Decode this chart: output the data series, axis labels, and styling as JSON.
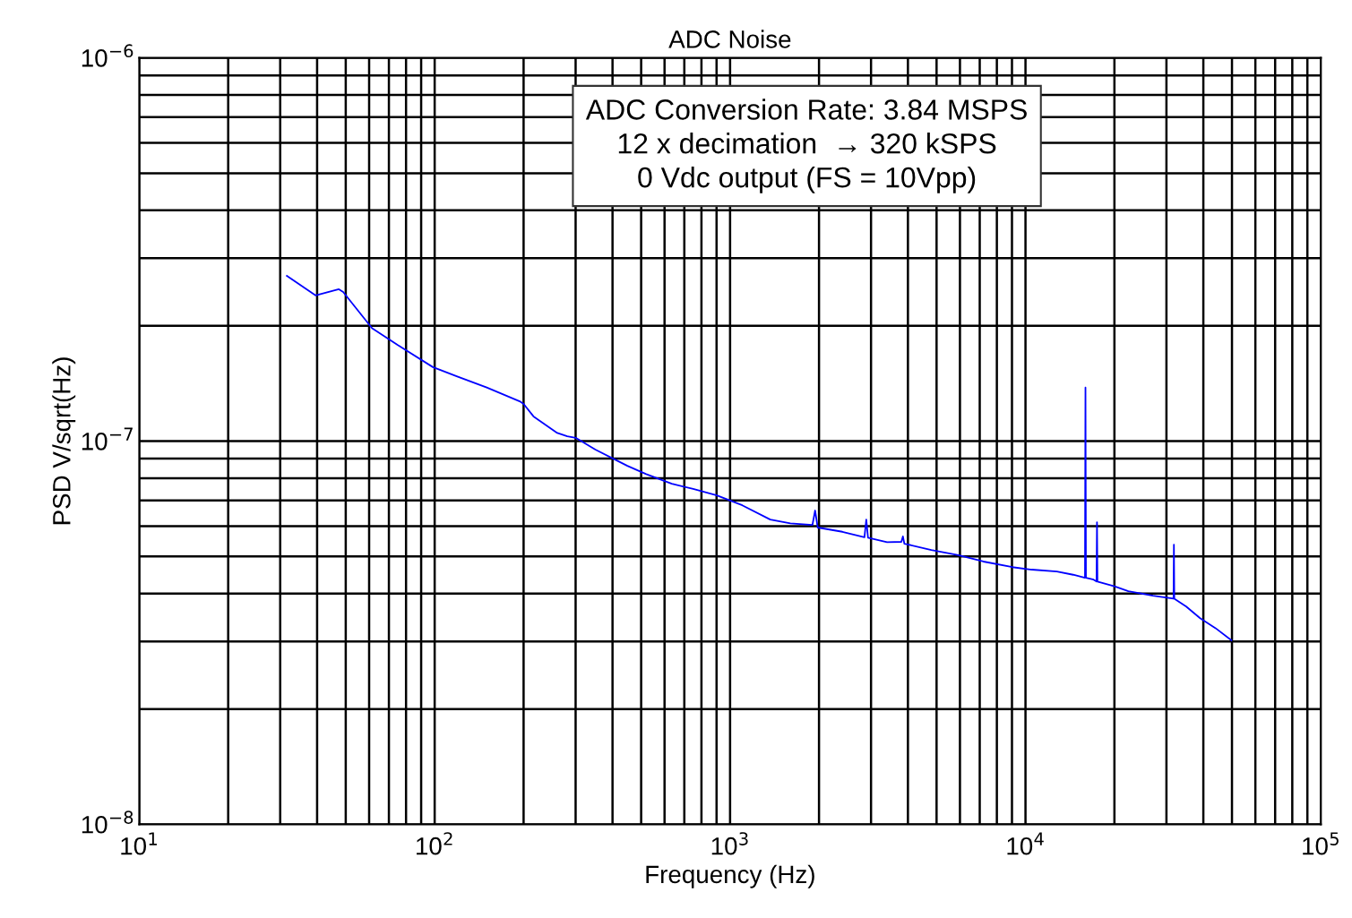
{
  "chart_data": {
    "type": "line",
    "title": "ADC Noise",
    "xlabel": "Frequency (Hz)",
    "ylabel": "PSD V/sqrt(Hz)",
    "log": "xy",
    "grid": true,
    "marker": "none",
    "line_style": "solid",
    "xlim": [
      10,
      100000
    ],
    "ylim": [
      1e-08,
      1e-06
    ],
    "xticks": [
      {
        "value": 10,
        "label": "10$^{1}$"
      },
      {
        "value": 100,
        "label": "10$^{2}$"
      },
      {
        "value": 1000,
        "label": "10$^{3}$"
      },
      {
        "value": 10000,
        "label": "10$^{4}$"
      },
      {
        "value": 100000,
        "label": "10$^{5}$"
      }
    ],
    "yticks": [
      {
        "value": 1e-08,
        "label": "10$^{−8}$"
      },
      {
        "value": 1e-07,
        "label": "10$^{−7}$"
      },
      {
        "value": 1e-06,
        "label": "10$^{−6}$"
      }
    ],
    "annotations": [
      "ADC Conversion Rate: 3.84 MSPS\n12 x decimation  → 320 kSPS\n0 Vdc output (FS = 10Vpp)"
    ],
    "series": [
      {
        "color": "#0000ff",
        "x": [
          31.6,
          39.5,
          47.4,
          49,
          61.4,
          75,
          98.6,
          115,
          150,
          194,
          200,
          216,
          260,
          281,
          300,
          350,
          449,
          520,
          635,
          750,
          902,
          1100,
          1368,
          1600,
          1900,
          1940,
          1980,
          2400,
          2850,
          2891,
          2930,
          3400,
          3800,
          3846,
          3890,
          4800,
          5931,
          7200,
          9020,
          10500,
          12770,
          14500,
          15900,
          15960,
          16020,
          17000,
          17400,
          17460,
          17520,
          20000,
          22300,
          27000,
          31700,
          31800,
          31900,
          35000,
          39000,
          44000,
          49800
        ],
        "values": [
          2.7e-07,
          2.4e-07,
          2.49e-07,
          2.45e-07,
          1.97e-07,
          1.78e-07,
          1.56e-07,
          1.49e-07,
          1.38e-07,
          1.27e-07,
          1.25e-07,
          1.16e-07,
          1.05e-07,
          1.03e-07,
          1.02e-07,
          9.5e-08,
          8.62e-08,
          8.2e-08,
          7.74e-08,
          7.5e-08,
          7.22e-08,
          6.8e-08,
          6.24e-08,
          6.1e-08,
          6.04e-08,
          6.59e-08,
          5.95e-08,
          5.8e-08,
          5.61e-08,
          6.24e-08,
          5.6e-08,
          5.45e-08,
          5.46e-08,
          5.64e-08,
          5.4e-08,
          5.2e-08,
          5.04e-08,
          4.85e-08,
          4.69e-08,
          4.62e-08,
          4.57e-08,
          4.48e-08,
          4.4e-08,
          1.38e-07,
          4.4e-08,
          4.35e-08,
          4.3e-08,
          6.14e-08,
          4.3e-08,
          4.18e-08,
          4.06e-08,
          3.95e-08,
          3.88e-08,
          5.37e-08,
          3.88e-08,
          3.7e-08,
          3.45e-08,
          3.25e-08,
          3.02e-08
        ]
      }
    ]
  }
}
